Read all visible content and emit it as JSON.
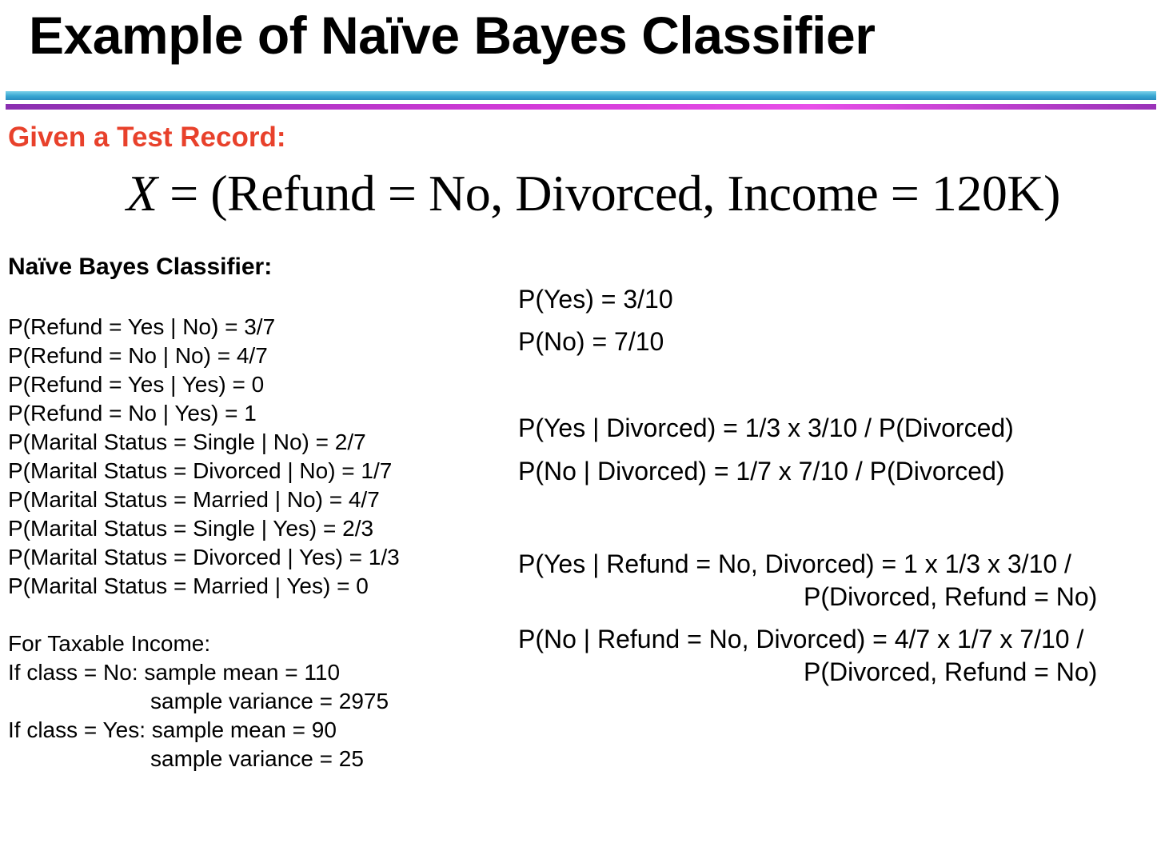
{
  "slide": {
    "title": "Example of Naïve Bayes Classifier",
    "accent_color": "#e8412b",
    "rule_colors": {
      "top": "#3aa9d4",
      "bottom": "#d23ad8"
    }
  },
  "test_record": {
    "label": "Given a Test Record:",
    "formula_var": "X",
    "formula_rest": " = (Refund = No, Divorced, Income = 120K)"
  },
  "classifier": {
    "heading": "Naïve  Bayes Classifier:",
    "probabilities": [
      "P(Refund = Yes | No) = 3/7",
      "P(Refund = No | No) = 4/7",
      "P(Refund = Yes | Yes) = 0",
      "P(Refund = No | Yes) = 1",
      "P(Marital Status = Single | No) = 2/7",
      "P(Marital Status = Divorced | No) = 1/7",
      "P(Marital Status = Married | No) = 4/7",
      "P(Marital Status = Single | Yes) = 2/3",
      "P(Marital Status = Divorced | Yes) = 1/3",
      "P(Marital Status = Married | Yes) = 0"
    ],
    "income": {
      "heading": "For Taxable Income:",
      "no_mean": "If class = No: sample mean = 110",
      "no_variance": "sample variance = 2975",
      "yes_mean": "If class = Yes: sample mean = 90",
      "yes_variance": "sample variance = 25"
    }
  },
  "posteriors": {
    "p_yes": "P(Yes) = 3/10",
    "p_no": "P(No) = 7/10",
    "yes_divorced": "P(Yes | Divorced) = 1/3 x 3/10 / P(Divorced)",
    "no_divorced": "P(No | Divorced) = 1/7 x 7/10 / P(Divorced)",
    "yes_refund_line1": "P(Yes | Refund = No, Divorced) = 1 x 1/3 x 3/10 /",
    "yes_refund_line2": "P(Divorced, Refund = No)",
    "no_refund_line1": "P(No | Refund = No, Divorced) = 4/7 x 1/7 x 7/10 /",
    "no_refund_line2": "P(Divorced, Refund = No)"
  }
}
